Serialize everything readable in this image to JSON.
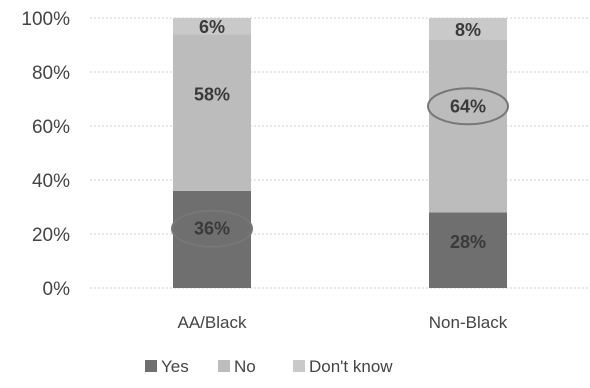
{
  "chart_data": {
    "type": "bar",
    "stacked": true,
    "percent_axis": true,
    "categories": [
      "AA/Black",
      "Non-Black"
    ],
    "series": [
      {
        "name": "Yes",
        "values": [
          36,
          28
        ],
        "color": "#6f6f6f"
      },
      {
        "name": "No",
        "values": [
          58,
          64
        ],
        "color": "#bcbcbc"
      },
      {
        "name": "Don't know",
        "values": [
          6,
          8
        ],
        "color": "#c9c9c9"
      }
    ],
    "data_labels": [
      [
        "36%",
        "28%"
      ],
      [
        "58%",
        "64%"
      ],
      [
        "6%",
        "8%"
      ]
    ],
    "circled_labels": [
      {
        "series": 0,
        "category": 0
      },
      {
        "series": 1,
        "category": 1
      }
    ],
    "ylim": [
      0,
      100
    ],
    "yticks": [
      "0%",
      "20%",
      "40%",
      "60%",
      "80%",
      "100%"
    ],
    "ytick_values": [
      0,
      20,
      40,
      60,
      80,
      100
    ],
    "grid": true,
    "legend_position": "bottom",
    "label_color": "#444444",
    "circle_color": "#777777"
  }
}
